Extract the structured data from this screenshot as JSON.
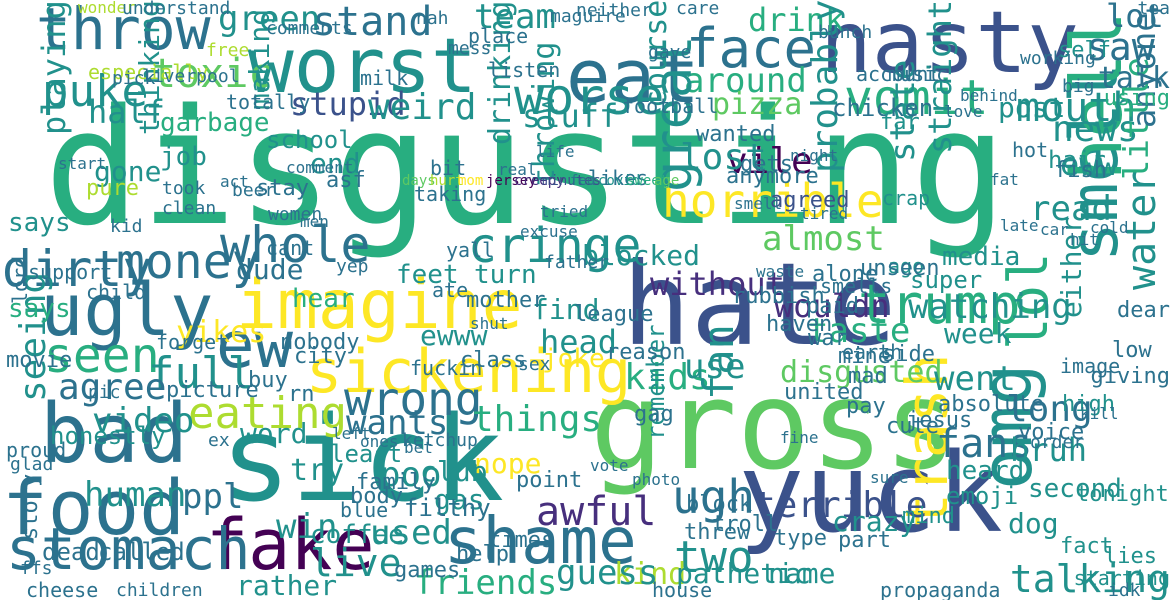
{
  "palette": [
    "#440154",
    "#472f7d",
    "#3b528b",
    "#2c728e",
    "#21918c",
    "#28ae80",
    "#5ec962",
    "#addc30",
    "#fde725"
  ],
  "words": [
    {
      "text": "disgusting"
    },
    {
      "text": "gross"
    },
    {
      "text": "sick"
    },
    {
      "text": "hate"
    },
    {
      "text": "yuck"
    },
    {
      "text": "nasty"
    },
    {
      "text": "worst"
    },
    {
      "text": "eat"
    },
    {
      "text": "bad"
    },
    {
      "text": "food"
    },
    {
      "text": "smell"
    },
    {
      "text": "omg"
    },
    {
      "text": "hell"
    },
    {
      "text": "shame"
    },
    {
      "text": "fake"
    },
    {
      "text": "stomach"
    },
    {
      "text": "ugly"
    },
    {
      "text": "imagine"
    },
    {
      "text": "sickening"
    },
    {
      "text": "ew"
    },
    {
      "text": "throw"
    },
    {
      "text": "face"
    },
    {
      "text": "trash"
    },
    {
      "text": "horrible"
    },
    {
      "text": "cringe"
    },
    {
      "text": "trump"
    },
    {
      "text": "vomit"
    },
    {
      "text": "mouth"
    },
    {
      "text": "worse"
    },
    {
      "text": "puke"
    },
    {
      "text": "money"
    },
    {
      "text": "whole"
    },
    {
      "text": "dirty"
    },
    {
      "text": "seen"
    },
    {
      "text": "wrong"
    },
    {
      "text": "lol"
    },
    {
      "text": "eating"
    },
    {
      "text": "awful"
    },
    {
      "text": "two"
    },
    {
      "text": "ugh"
    },
    {
      "text": "toxic"
    },
    {
      "text": "drink"
    },
    {
      "text": "saw"
    },
    {
      "text": "talk"
    },
    {
      "text": "lot"
    },
    {
      "text": "news"
    },
    {
      "text": "full"
    },
    {
      "text": "fans"
    },
    {
      "text": "watching"
    },
    {
      "text": "kids"
    },
    {
      "text": "agree"
    },
    {
      "text": "stand"
    },
    {
      "text": "green"
    },
    {
      "text": "around"
    },
    {
      "text": "team"
    },
    {
      "text": "pizza"
    },
    {
      "text": "stupid"
    },
    {
      "text": "weird"
    },
    {
      "text": "water"
    },
    {
      "text": "little"
    },
    {
      "text": "anyone"
    },
    {
      "text": "talking"
    },
    {
      "text": "terrible"
    },
    {
      "text": "wants"
    },
    {
      "text": "things"
    },
    {
      "text": "video"
    },
    {
      "text": "seeing"
    },
    {
      "text": "human"
    },
    {
      "text": "ppl"
    },
    {
      "text": "kind"
    },
    {
      "text": "guess"
    },
    {
      "text": "friends"
    },
    {
      "text": "live"
    },
    {
      "text": "used"
    },
    {
      "text": "taste"
    },
    {
      "text": "use"
    },
    {
      "text": "disgusted"
    },
    {
      "text": "went"
    },
    {
      "text": "long"
    },
    {
      "text": "bruh"
    },
    {
      "text": "head"
    },
    {
      "text": "vile"
    },
    {
      "text": "lost"
    },
    {
      "text": "great"
    },
    {
      "text": "fan"
    },
    {
      "text": "without"
    },
    {
      "text": "wouldn"
    },
    {
      "text": "half"
    },
    {
      "text": "playing"
    },
    {
      "text": "thinking"
    },
    {
      "text": "making"
    },
    {
      "text": "drinking"
    },
    {
      "text": "throwing"
    },
    {
      "text": "probably"
    },
    {
      "text": "post"
    },
    {
      "text": "straight"
    },
    {
      "text": "state"
    },
    {
      "text": "eww"
    },
    {
      "text": "read"
    },
    {
      "text": "stuff"
    },
    {
      "text": "course"
    },
    {
      "text": "dude"
    },
    {
      "text": "yikes"
    },
    {
      "text": "says"
    },
    {
      "text": "word"
    },
    {
      "text": "try"
    },
    {
      "text": "poor"
    },
    {
      "text": "win"
    },
    {
      "text": "name"
    },
    {
      "text": "pathetic"
    },
    {
      "text": "cheese"
    },
    {
      "text": "children"
    },
    {
      "text": "rather"
    },
    {
      "text": "dog"
    },
    {
      "text": "either"
    },
    {
      "text": "week"
    },
    {
      "text": "ewww"
    },
    {
      "text": "turn"
    },
    {
      "text": "feet"
    },
    {
      "text": "hear"
    },
    {
      "text": "find"
    },
    {
      "text": "joke"
    },
    {
      "text": "nope"
    },
    {
      "text": "club"
    },
    {
      "text": "blocked"
    },
    {
      "text": "almost"
    },
    {
      "text": "end"
    },
    {
      "text": "says"
    },
    {
      "text": "honestly"
    },
    {
      "text": "dead"
    },
    {
      "text": "called"
    },
    {
      "text": "story"
    },
    {
      "text": "picture"
    },
    {
      "text": "coffee"
    },
    {
      "text": "gas"
    },
    {
      "text": "crazy"
    },
    {
      "text": "ago"
    },
    {
      "text": "super"
    },
    {
      "text": "media"
    },
    {
      "text": "hair"
    },
    {
      "text": "second"
    },
    {
      "text": "tonight"
    },
    {
      "text": "lies"
    },
    {
      "text": "starting"
    },
    {
      "text": "fact"
    },
    {
      "text": "heard"
    },
    {
      "text": "emoji"
    },
    {
      "text": "mind"
    },
    {
      "text": "remember"
    },
    {
      "text": "wonder"
    },
    {
      "text": "understand"
    },
    {
      "text": "nah"
    },
    {
      "text": "maguire"
    },
    {
      "text": "care"
    },
    {
      "text": "neither"
    },
    {
      "text": "especially"
    },
    {
      "text": "listen"
    },
    {
      "text": "place"
    },
    {
      "text": "milk"
    },
    {
      "text": "free"
    },
    {
      "text": "comments"
    },
    {
      "text": "pick"
    },
    {
      "text": "liverpool"
    },
    {
      "text": "school"
    },
    {
      "text": "garbage"
    },
    {
      "text": "job"
    },
    {
      "text": "gone"
    },
    {
      "text": "took"
    },
    {
      "text": "clean"
    },
    {
      "text": "stay"
    },
    {
      "text": "asf"
    },
    {
      "text": "bit"
    },
    {
      "text": "taking"
    },
    {
      "text": "likes"
    },
    {
      "text": "anymore"
    },
    {
      "text": "gets"
    },
    {
      "text": "agreed"
    },
    {
      "text": "chicken"
    },
    {
      "text": "account"
    },
    {
      "text": "music"
    },
    {
      "text": "wanted"
    },
    {
      "text": "football"
    },
    {
      "text": "totally"
    },
    {
      "text": "pure"
    },
    {
      "text": "cant"
    },
    {
      "text": "yall"
    },
    {
      "text": "father"
    },
    {
      "text": "league"
    },
    {
      "text": "mother"
    },
    {
      "text": "nobody"
    },
    {
      "text": "forget"
    },
    {
      "text": "movie"
    },
    {
      "text": "support"
    },
    {
      "text": "child"
    },
    {
      "text": "lord"
    },
    {
      "text": "least"
    },
    {
      "text": "family"
    },
    {
      "text": "body"
    },
    {
      "text": "blue"
    },
    {
      "text": "filthy"
    },
    {
      "text": "times"
    },
    {
      "text": "help"
    },
    {
      "text": "troll"
    },
    {
      "text": "threw"
    },
    {
      "text": "block"
    },
    {
      "text": "voice"
    },
    {
      "text": "fish"
    },
    {
      "text": "mine"
    },
    {
      "text": "war"
    },
    {
      "text": "haven"
    },
    {
      "text": "united"
    },
    {
      "text": "pay"
    },
    {
      "text": "mad"
    },
    {
      "text": "side"
    },
    {
      "text": "cute"
    },
    {
      "text": "absolute"
    },
    {
      "text": "jesus"
    },
    {
      "text": "giving"
    },
    {
      "text": "dear"
    },
    {
      "text": "low"
    },
    {
      "text": "using"
    },
    {
      "text": "tea"
    },
    {
      "text": "self"
    },
    {
      "text": "far"
    },
    {
      "text": "crap"
    },
    {
      "text": "proud"
    },
    {
      "text": "glad"
    },
    {
      "text": "ffs"
    },
    {
      "text": "games"
    },
    {
      "text": "high"
    },
    {
      "text": "class"
    },
    {
      "text": "gag"
    },
    {
      "text": "reason"
    },
    {
      "text": "sex"
    },
    {
      "text": "paid"
    },
    {
      "text": "smells"
    },
    {
      "text": "unseen"
    },
    {
      "text": "rubbish"
    },
    {
      "text": "alone"
    },
    {
      "text": "city"
    },
    {
      "text": "fuckin"
    },
    {
      "text": "ate"
    },
    {
      "text": "buy"
    },
    {
      "text": "rn"
    },
    {
      "text": "type"
    },
    {
      "text": "part"
    },
    {
      "text": "point"
    },
    {
      "text": "house"
    },
    {
      "text": "propaganda"
    },
    {
      "text": "idk"
    },
    {
      "text": "earth"
    },
    {
      "text": "image"
    },
    {
      "text": "hot"
    },
    {
      "text": "beer"
    },
    {
      "text": "pic"
    },
    {
      "text": "ex"
    },
    {
      "text": "yep"
    },
    {
      "text": "ketchup"
    },
    {
      "text": "start"
    },
    {
      "text": "waste"
    },
    {
      "text": "bunch"
    },
    {
      "text": "mess"
    },
    {
      "text": "gave"
    },
    {
      "text": "working"
    },
    {
      "text": "big"
    },
    {
      "text": "fat"
    },
    {
      "text": "car"
    },
    {
      "text": "hit"
    },
    {
      "text": "cold"
    },
    {
      "text": "late"
    },
    {
      "text": "kill"
    },
    {
      "text": "vote"
    },
    {
      "text": "photo"
    },
    {
      "text": "bet"
    },
    {
      "text": "ones"
    },
    {
      "text": "left"
    },
    {
      "text": "act"
    },
    {
      "text": "real"
    },
    {
      "text": "life"
    },
    {
      "text": "love"
    },
    {
      "text": "night"
    },
    {
      "text": "smell"
    },
    {
      "text": "tried"
    },
    {
      "text": "excuse"
    },
    {
      "text": "comment"
    },
    {
      "text": "women"
    },
    {
      "text": "men"
    },
    {
      "text": "kid"
    },
    {
      "text": "behind"
    },
    {
      "text": "order"
    },
    {
      "text": "sure"
    },
    {
      "text": "fine"
    },
    {
      "text": "shut"
    },
    {
      "text": "tired"
    },
    {
      "text": "days"
    },
    {
      "text": "hurt"
    },
    {
      "text": "mom"
    },
    {
      "text": "jersey"
    },
    {
      "text": "creepy"
    },
    {
      "text": "minutes"
    },
    {
      "text": "fed"
    },
    {
      "text": "covid"
    },
    {
      "text": "sweet"
    },
    {
      "text": "age"
    }
  ]
}
